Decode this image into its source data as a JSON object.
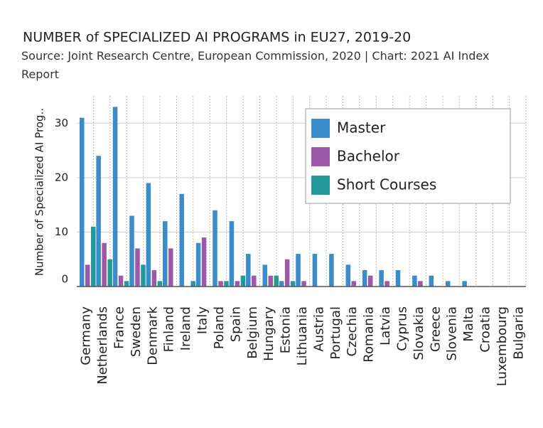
{
  "chart_data": {
    "type": "bar",
    "title": "NUMBER of SPECIALIZED AI PROGRAMS in EU27, 2019-20",
    "subtitle": "Source: Joint Research Centre, European Commission, 2020 | Chart: 2021 AI Index Report",
    "y_label": "Number of Specialized AI Prog..",
    "categories": [
      "Germany",
      "Netherlands",
      "France",
      "Sweden",
      "Denmark",
      "Finland",
      "Ireland",
      "Italy",
      "Poland",
      "Spain",
      "Belgium",
      "Hungary",
      "Estonia",
      "Lithuania",
      "Austria",
      "Portugal",
      "Czechia",
      "Romania",
      "Latvia",
      "Cyprus",
      "Slovakia",
      "Greece",
      "Slovenia",
      "Malta",
      "Croatia",
      "Luxembourg",
      "Bulgaria"
    ],
    "series": [
      {
        "name": "Master",
        "color": "#3a8ccb",
        "values": [
          31,
          24,
          33,
          13,
          19,
          12,
          17,
          8,
          14,
          12,
          6,
          4,
          1,
          6,
          6,
          6,
          4,
          3,
          3,
          3,
          2,
          2,
          1,
          1,
          0,
          0,
          0
        ]
      },
      {
        "name": "Bachelor",
        "color": "#9b59a8",
        "values": [
          4,
          8,
          2,
          7,
          3,
          7,
          0,
          9,
          1,
          1,
          2,
          2,
          5,
          1,
          0,
          0,
          1,
          2,
          1,
          0,
          1,
          0,
          0,
          0,
          0,
          0,
          0
        ]
      },
      {
        "name": "Short Courses",
        "color": "#23999a",
        "values": [
          11,
          5,
          1,
          4,
          1,
          0,
          1,
          0,
          1,
          2,
          0,
          2,
          1,
          0,
          0,
          0,
          0,
          0,
          0,
          0,
          0,
          0,
          0,
          0,
          0,
          0,
          0
        ]
      }
    ],
    "ylim": [
      0,
      35
    ],
    "yticks": [
      0,
      10,
      20,
      30
    ],
    "grid": true,
    "legend": "top-right"
  }
}
